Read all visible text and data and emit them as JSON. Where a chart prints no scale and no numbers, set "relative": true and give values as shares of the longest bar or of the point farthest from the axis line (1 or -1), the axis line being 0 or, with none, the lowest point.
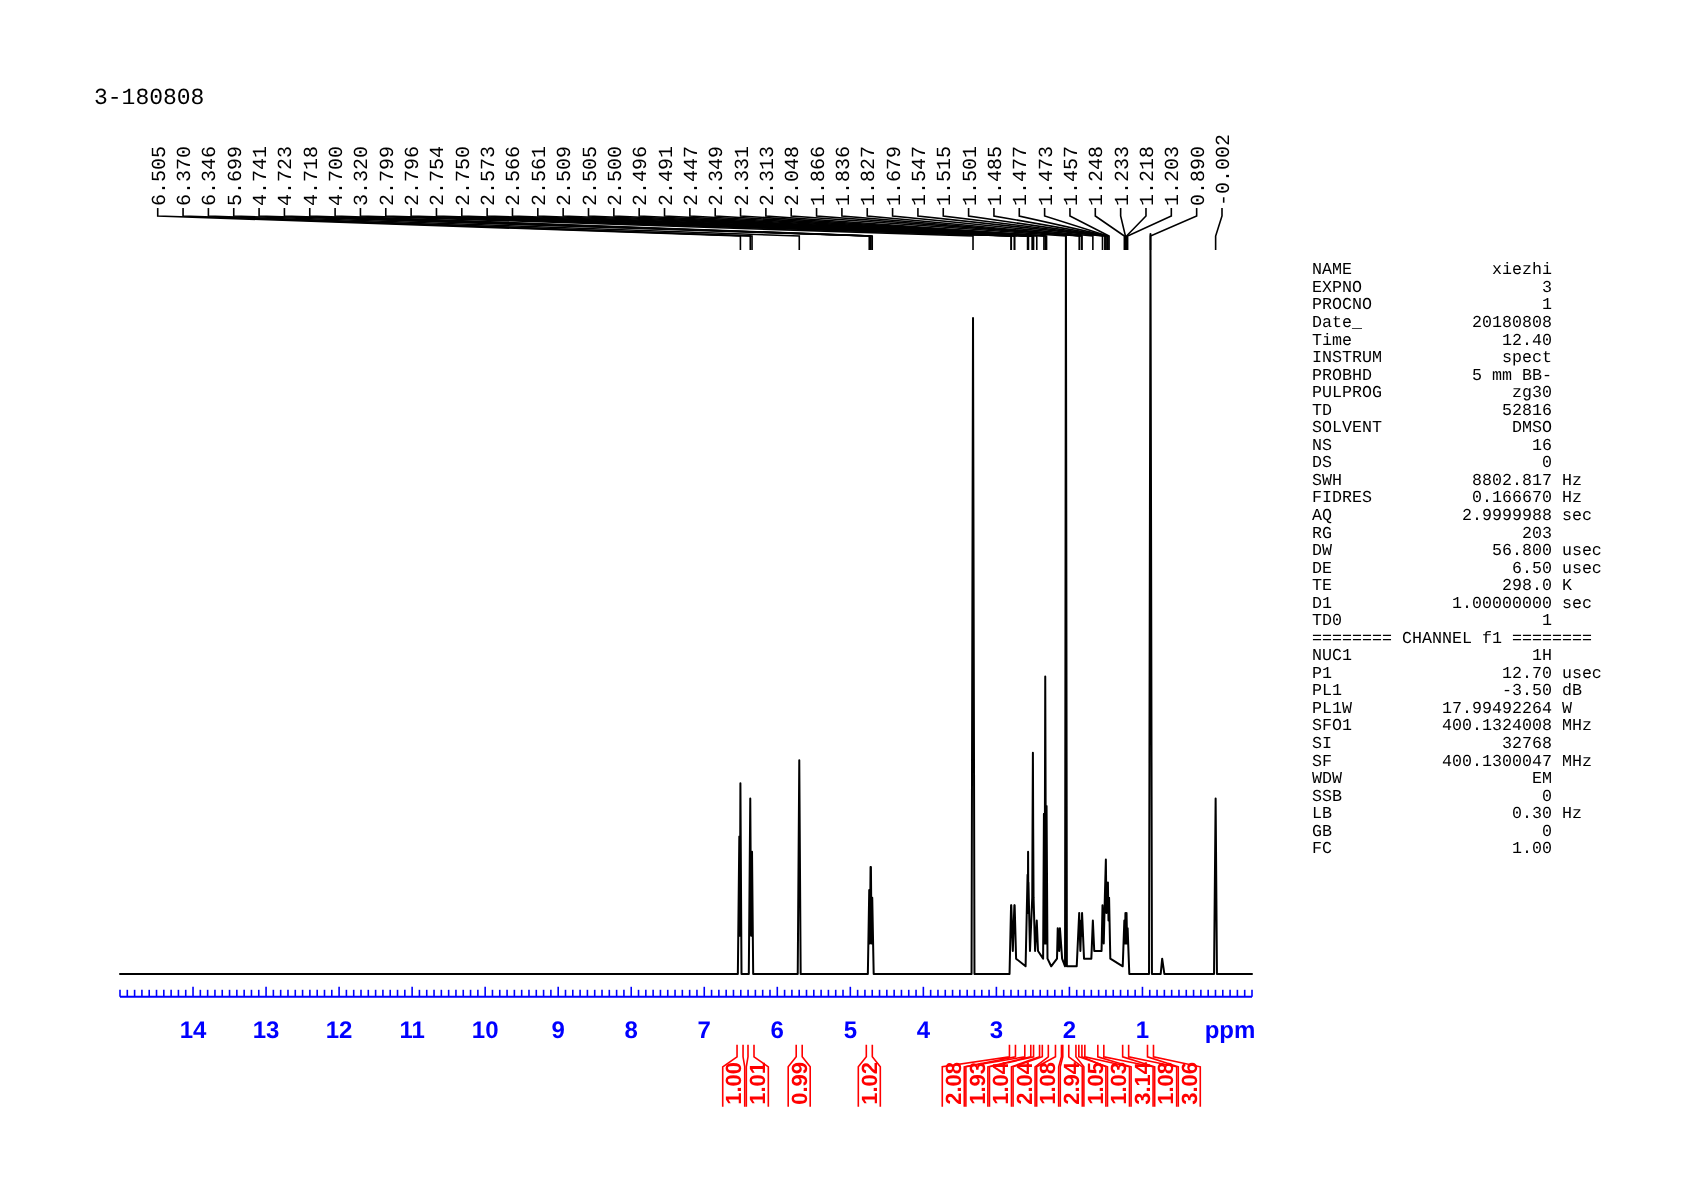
{
  "chart_data": {
    "type": "line",
    "title": "3-180808",
    "xlabel": "ppm",
    "relative": true,
    "color": "#000000",
    "xlim": [
      15,
      -0.5
    ],
    "xticks": [
      {
        "value": 15,
        "label": null
      },
      {
        "value": 14.9,
        "label": null
      },
      {
        "value": 14.8,
        "label": null
      },
      {
        "value": 14.7,
        "label": null
      },
      {
        "value": 14.6,
        "label": null
      },
      {
        "value": 14.5,
        "label": null
      },
      {
        "value": 14.4,
        "label": null
      },
      {
        "value": 14.3,
        "label": null
      },
      {
        "value": 14.2,
        "label": null
      },
      {
        "value": 14.1,
        "label": null
      },
      14,
      {
        "value": 13.9,
        "label": null
      },
      {
        "value": 13.8,
        "label": null
      },
      {
        "value": 13.7,
        "label": null
      },
      {
        "value": 13.6,
        "label": null
      },
      {
        "value": 13.5,
        "label": null
      },
      {
        "value": 13.4,
        "label": null
      },
      {
        "value": 13.3,
        "label": null
      },
      {
        "value": 13.2,
        "label": null
      },
      {
        "value": 13.1,
        "label": null
      },
      13,
      {
        "value": 12.9,
        "label": null
      },
      {
        "value": 12.8,
        "label": null
      },
      {
        "value": 12.7,
        "label": null
      },
      {
        "value": 12.6,
        "label": null
      },
      {
        "value": 12.5,
        "label": null
      },
      {
        "value": 12.4,
        "label": null
      },
      {
        "value": 12.3,
        "label": null
      },
      {
        "value": 12.2,
        "label": null
      },
      {
        "value": 12.1,
        "label": null
      },
      12,
      {
        "value": 11.9,
        "label": null
      },
      {
        "value": 11.8,
        "label": null
      },
      {
        "value": 11.7,
        "label": null
      },
      {
        "value": 11.6,
        "label": null
      },
      {
        "value": 11.5,
        "label": null
      },
      {
        "value": 11.4,
        "label": null
      },
      {
        "value": 11.3,
        "label": null
      },
      {
        "value": 11.2,
        "label": null
      },
      {
        "value": 11.1,
        "label": null
      },
      11,
      {
        "value": 10.9,
        "label": null
      },
      {
        "value": 10.8,
        "label": null
      },
      {
        "value": 10.7,
        "label": null
      },
      {
        "value": 10.6,
        "label": null
      },
      {
        "value": 10.5,
        "label": null
      },
      {
        "value": 10.4,
        "label": null
      },
      {
        "value": 10.3,
        "label": null
      },
      {
        "value": 10.2,
        "label": null
      },
      {
        "value": 10.1,
        "label": null
      },
      10,
      {
        "value": 9.9,
        "label": null
      },
      {
        "value": 9.8,
        "label": null
      },
      {
        "value": 9.7,
        "label": null
      },
      {
        "value": 9.6,
        "label": null
      },
      {
        "value": 9.5,
        "label": null
      },
      {
        "value": 9.4,
        "label": null
      },
      {
        "value": 9.3,
        "label": null
      },
      {
        "value": 9.2,
        "label": null
      },
      {
        "value": 9.1,
        "label": null
      },
      9,
      {
        "value": 8.9,
        "label": null
      },
      {
        "value": 8.8,
        "label": null
      },
      {
        "value": 8.7,
        "label": null
      },
      {
        "value": 8.6,
        "label": null
      },
      {
        "value": 8.5,
        "label": null
      },
      {
        "value": 8.4,
        "label": null
      },
      {
        "value": 8.3,
        "label": null
      },
      {
        "value": 8.2,
        "label": null
      },
      {
        "value": 8.1,
        "label": null
      },
      8,
      {
        "value": 7.9,
        "label": null
      },
      {
        "value": 7.8,
        "label": null
      },
      {
        "value": 7.7,
        "label": null
      },
      {
        "value": 7.6,
        "label": null
      },
      {
        "value": 7.5,
        "label": null
      },
      {
        "value": 7.4,
        "label": null
      },
      {
        "value": 7.3,
        "label": null
      },
      {
        "value": 7.2,
        "label": null
      },
      {
        "value": 7.1,
        "label": null
      },
      7,
      {
        "value": 6.9,
        "label": null
      },
      {
        "value": 6.8,
        "label": null
      },
      {
        "value": 6.7,
        "label": null
      },
      {
        "value": 6.6,
        "label": null
      },
      {
        "value": 6.5,
        "label": null
      },
      {
        "value": 6.4,
        "label": null
      },
      {
        "value": 6.3,
        "label": null
      },
      {
        "value": 6.2,
        "label": null
      },
      {
        "value": 6.1,
        "label": null
      },
      6,
      {
        "value": 5.9,
        "label": null
      },
      {
        "value": 5.8,
        "label": null
      },
      {
        "value": 5.7,
        "label": null
      },
      {
        "value": 5.6,
        "label": null
      },
      {
        "value": 5.5,
        "label": null
      },
      {
        "value": 5.4,
        "label": null
      },
      {
        "value": 5.3,
        "label": null
      },
      {
        "value": 5.2,
        "label": null
      },
      {
        "value": 5.1,
        "label": null
      },
      5,
      {
        "value": 4.9,
        "label": null
      },
      {
        "value": 4.8,
        "label": null
      },
      {
        "value": 4.7,
        "label": null
      },
      {
        "value": 4.6,
        "label": null
      },
      {
        "value": 4.5,
        "label": null
      },
      {
        "value": 4.4,
        "label": null
      },
      {
        "value": 4.3,
        "label": null
      },
      {
        "value": 4.2,
        "label": null
      },
      {
        "value": 4.1,
        "label": null
      },
      4,
      {
        "value": 3.9,
        "label": null
      },
      {
        "value": 3.8,
        "label": null
      },
      {
        "value": 3.7,
        "label": null
      },
      {
        "value": 3.6,
        "label": null
      },
      {
        "value": 3.5,
        "label": null
      },
      {
        "value": 3.4,
        "label": null
      },
      {
        "value": 3.3,
        "label": null
      },
      {
        "value": 3.2,
        "label": null
      },
      {
        "value": 3.1,
        "label": null
      },
      3,
      {
        "value": 2.9,
        "label": null
      },
      {
        "value": 2.8,
        "label": null
      },
      {
        "value": 2.7,
        "label": null
      },
      {
        "value": 2.6,
        "label": null
      },
      {
        "value": 2.5,
        "label": null
      },
      {
        "value": 2.4,
        "label": null
      },
      {
        "value": 2.3,
        "label": null
      },
      {
        "value": 2.2,
        "label": null
      },
      {
        "value": 2.1,
        "label": null
      },
      2,
      {
        "value": 1.9,
        "label": null
      },
      {
        "value": 1.8,
        "label": null
      },
      {
        "value": 1.7,
        "label": null
      },
      {
        "value": 1.6,
        "label": null
      },
      {
        "value": 1.5,
        "label": null
      },
      {
        "value": 1.4,
        "label": null
      },
      {
        "value": 1.3,
        "label": null
      },
      {
        "value": 1.2,
        "label": null
      },
      {
        "value": 1.1,
        "label": null
      },
      1,
      {
        "value": 0.9,
        "label": null
      },
      {
        "value": 0.8,
        "label": null
      },
      {
        "value": 0.7,
        "label": null
      },
      {
        "value": 0.6,
        "label": null
      },
      {
        "value": 0.5,
        "label": null
      },
      {
        "value": 0.4,
        "label": null
      },
      {
        "value": 0.3,
        "label": null
      },
      {
        "value": 0.2,
        "label": null
      },
      {
        "value": 0.1,
        "label": null
      },
      {
        "value": 0,
        "label": null
      },
      {
        "value": -0.1,
        "label": null
      },
      {
        "value": -0.2,
        "label": null
      },
      {
        "value": -0.3,
        "label": null
      },
      {
        "value": -0.4,
        "label": null
      },
      {
        "value": -0.5,
        "label": null
      }
    ],
    "x": [
      15,
      6.54,
      6.52,
      6.512,
      6.505,
      6.49,
      6.39,
      6.37,
      6.358,
      6.346,
      6.33,
      5.72,
      5.699,
      5.68,
      4.76,
      4.741,
      4.732,
      4.723,
      4.72,
      4.718,
      4.709,
      4.7,
      4.68,
      3.34,
      3.32,
      3.3,
      2.82,
      2.799,
      2.797,
      2.796,
      2.775,
      2.754,
      2.752,
      2.75,
      2.73,
      2.6,
      2.573,
      2.569,
      2.566,
      2.563,
      2.561,
      2.54,
      2.509,
      2.505,
      2.5,
      2.496,
      2.491,
      2.47,
      2.447,
      2.43,
      2.36,
      2.349,
      2.34,
      2.331,
      2.32,
      2.313,
      2.3,
      2.25,
      2.17,
      2.16,
      2.14,
      2.13,
      2.1,
      2.06,
      2.048,
      2.035,
      1.9,
      1.866,
      1.85,
      1.836,
      1.831,
      1.827,
      1.8,
      1.7,
      1.679,
      1.66,
      1.56,
      1.547,
      1.53,
      1.515,
      1.501,
      1.493,
      1.485,
      1.477,
      1.473,
      1.465,
      1.457,
      1.44,
      1.27,
      1.248,
      1.24,
      1.233,
      1.225,
      1.218,
      1.21,
      1.203,
      1.18,
      0.91,
      0.89,
      0.87,
      0.75,
      0.73,
      0.7,
      0.02,
      -0.002,
      -0.02,
      -0.5
    ],
    "values": [
      0.03,
      0.03,
      0.21,
      0.08,
      0.28,
      0.03,
      0.03,
      0.26,
      0.08,
      0.19,
      0.03,
      0.03,
      0.31,
      0.03,
      0.03,
      0.14,
      0.07,
      0.17,
      0.13,
      0.17,
      0.07,
      0.13,
      0.03,
      0.03,
      0.89,
      0.03,
      0.03,
      0.12,
      0.1,
      0.12,
      0.06,
      0.12,
      0.1,
      0.12,
      0.05,
      0.04,
      0.16,
      0.11,
      0.19,
      0.13,
      0.15,
      0.06,
      0.13,
      0.22,
      0.32,
      0.22,
      0.13,
      0.06,
      0.1,
      0.06,
      0.05,
      0.24,
      0.07,
      0.42,
      0.07,
      0.25,
      0.05,
      0.04,
      0.05,
      0.09,
      0.06,
      0.09,
      0.05,
      0.04,
      1,
      0.04,
      0.04,
      0.11,
      0.06,
      0.1,
      0.08,
      0.11,
      0.05,
      0.05,
      0.1,
      0.06,
      0.06,
      0.12,
      0.07,
      0.13,
      0.18,
      0.11,
      0.13,
      0.14,
      0.15,
      0.1,
      0.13,
      0.05,
      0.04,
      0.1,
      0.07,
      0.11,
      0.07,
      0.11,
      0.07,
      0.09,
      0.03,
      0.03,
      1,
      0.03,
      0.03,
      0.05,
      0.03,
      0.03,
      0.26,
      0.03,
      0.03
    ],
    "annotations": [
      {
        "text": "6.505",
        "x": 6.505
      },
      {
        "text": "6.370",
        "x": 6.37
      },
      {
        "text": "6.346",
        "x": 6.346
      },
      {
        "text": "5.699",
        "x": 5.699
      },
      {
        "text": "4.741",
        "x": 4.741
      },
      {
        "text": "4.723",
        "x": 4.723
      },
      {
        "text": "4.718",
        "x": 4.718
      },
      {
        "text": "4.700",
        "x": 4.7
      },
      {
        "text": "3.320",
        "x": 3.32
      },
      {
        "text": "2.799",
        "x": 2.799
      },
      {
        "text": "2.796",
        "x": 2.796
      },
      {
        "text": "2.754",
        "x": 2.754
      },
      {
        "text": "2.750",
        "x": 2.75
      },
      {
        "text": "2.573",
        "x": 2.573
      },
      {
        "text": "2.566",
        "x": 2.566
      },
      {
        "text": "2.561",
        "x": 2.561
      },
      {
        "text": "2.509",
        "x": 2.509
      },
      {
        "text": "2.505",
        "x": 2.505
      },
      {
        "text": "2.500",
        "x": 2.5
      },
      {
        "text": "2.496",
        "x": 2.496
      },
      {
        "text": "2.491",
        "x": 2.491
      },
      {
        "text": "2.447",
        "x": 2.447
      },
      {
        "text": "2.349",
        "x": 2.349
      },
      {
        "text": "2.331",
        "x": 2.331
      },
      {
        "text": "2.313",
        "x": 2.313
      },
      {
        "text": "2.048",
        "x": 2.048
      },
      {
        "text": "1.866",
        "x": 1.866
      },
      {
        "text": "1.836",
        "x": 1.836
      },
      {
        "text": "1.827",
        "x": 1.827
      },
      {
        "text": "1.679",
        "x": 1.679
      },
      {
        "text": "1.547",
        "x": 1.547
      },
      {
        "text": "1.515",
        "x": 1.515
      },
      {
        "text": "1.501",
        "x": 1.501
      },
      {
        "text": "1.485",
        "x": 1.485
      },
      {
        "text": "1.477",
        "x": 1.477
      },
      {
        "text": "1.473",
        "x": 1.473
      },
      {
        "text": "1.457",
        "x": 1.457
      },
      {
        "text": "1.248",
        "x": 1.248
      },
      {
        "text": "1.233",
        "x": 1.233
      },
      {
        "text": "1.218",
        "x": 1.218
      },
      {
        "text": "1.203",
        "x": 1.203
      },
      {
        "text": "0.890",
        "x": 0.89
      },
      {
        "text": "-0.002",
        "x": -0.002
      },
      {
        "text": "1.00",
        "x": 6.51
      },
      {
        "text": "1.01",
        "x": 6.36
      },
      {
        "text": "0.99",
        "x": 5.7
      },
      {
        "text": "1.02",
        "x": 4.74
      },
      {
        "text": "2.08",
        "x": 2.78
      },
      {
        "text": "1.93",
        "x": 2.57
      },
      {
        "text": "1.04",
        "x": 2.45
      },
      {
        "text": "2.04",
        "x": 2.33
      },
      {
        "text": "1.08",
        "x": 2.15
      },
      {
        "text": "2.94",
        "x": 2.05
      },
      {
        "text": "1.05",
        "x": 1.87
      },
      {
        "text": "1.03",
        "x": 1.83
      },
      {
        "text": "3.14",
        "x": 1.57
      },
      {
        "text": "1.08",
        "x": 1.23
      },
      {
        "text": "3.06",
        "x": 0.89
      },
      "NAME              xiezhi",
      "EXPNO                  3",
      "PROCNO                 1",
      "Date_           20180808",
      "Time               12.40",
      "INSTRUM            spect",
      "PROBHD          5 mm BB-",
      "PULPROG             zg30",
      "TD                 52816",
      "SOLVENT             DMSO",
      "NS                    16",
      "DS                     0",
      "SWH             8802.817 Hz",
      "FIDRES          0.166670 Hz",
      "AQ             2.9999988 sec",
      "RG                   203",
      "DW                56.800 usec",
      "DE                  6.50 usec",
      "TE                 298.0 K",
      "D1            1.00000000 sec",
      "TD0                    1",
      "======== CHANNEL f1 ========",
      "NUC1                  1H",
      "P1                 12.70 usec",
      "PL1                -3.50 dB",
      "PL1W         17.99492264 W",
      "SFO1         400.1324008 MHz",
      "SI                 32768",
      "SF           400.1300047 MHz",
      "WDW                   EM",
      "SSB                    0",
      "LB                  0.30 Hz",
      "GB                     0",
      "FC                  1.00"
    ]
  }
}
